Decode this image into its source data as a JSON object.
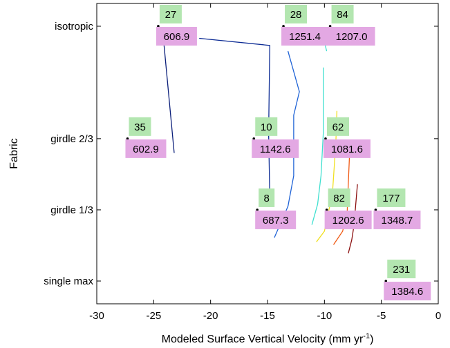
{
  "chart_data": {
    "type": "scatter",
    "xlabel": "Modeled Surface Vertical Velocity (mm yr",
    "xlabel_sup": "-1",
    "xlabel_close": ")",
    "ylabel": "Fabric",
    "xlim": [
      -30,
      0
    ],
    "xticks": [
      -30,
      -25,
      -20,
      -15,
      -10,
      -5,
      0
    ],
    "categories": [
      "isotropic",
      "girdle 2/3",
      "girdle 1/3",
      "single max"
    ],
    "category_positions": [
      0,
      1.58,
      2.58,
      3.58
    ],
    "ylim": [
      -0.32,
      3.9
    ],
    "grid": false,
    "points": [
      {
        "x": -24.6,
        "y": 0,
        "count": "27",
        "value": "606.9"
      },
      {
        "x": -13.6,
        "y": 0,
        "count": "28",
        "value": "1251.4"
      },
      {
        "x": -9.5,
        "y": 0,
        "count": "84",
        "value": "1207.0"
      },
      {
        "x": -27.3,
        "y": 1.58,
        "count": "35",
        "value": "602.9"
      },
      {
        "x": -16.2,
        "y": 1.58,
        "count": "10",
        "value": "1142.6"
      },
      {
        "x": -9.9,
        "y": 1.58,
        "count": "62",
        "value": "1081.6"
      },
      {
        "x": -15.9,
        "y": 2.58,
        "count": "8",
        "value": "687.3"
      },
      {
        "x": -9.8,
        "y": 2.58,
        "count": "82",
        "value": "1202.6"
      },
      {
        "x": -5.5,
        "y": 2.58,
        "count": "177",
        "value": "1348.7"
      },
      {
        "x": -4.6,
        "y": 3.58,
        "count": "231",
        "value": "1384.6"
      }
    ],
    "series": [
      {
        "color": "#0b1f7a",
        "x": [
          -24.2,
          -23.2
        ],
        "y": [
          0.08,
          1.78
        ]
      },
      {
        "color": "#0c2b94",
        "x": [
          -21.0,
          -14.8,
          -14.9,
          -14.8
        ],
        "y": [
          0.17,
          0.27,
          1.5,
          2.4
        ]
      },
      {
        "color": "#1f63d6",
        "x": [
          -13.2,
          -12.2,
          -12.7,
          -12.7,
          -13.2,
          -14.4
        ],
        "y": [
          0.35,
          0.92,
          1.25,
          2.1,
          2.53,
          2.97
        ]
      },
      {
        "color": "#40e0d0",
        "x": [
          -10.0,
          -9.8
        ],
        "y": [
          0.22,
          0.35
        ]
      },
      {
        "color": "#40e0d0",
        "x": [
          -10.1,
          -10.1,
          -10.3,
          -10.6,
          -11.1
        ],
        "y": [
          0.58,
          1.5,
          2.1,
          2.5,
          2.79
        ]
      },
      {
        "color": "#f0e020",
        "x": [
          -8.9,
          -9.0,
          -9.3,
          -10.0,
          -10.7
        ],
        "y": [
          1.19,
          1.65,
          2.35,
          2.88,
          3.03
        ]
      },
      {
        "color": "#f05a14",
        "x": [
          -7.8,
          -7.9,
          -8.0,
          -8.4,
          -9.2
        ],
        "y": [
          1.82,
          2.2,
          2.6,
          2.88,
          3.07
        ]
      },
      {
        "color": "#8b0f0f",
        "x": [
          -7.1,
          -7.3,
          -7.4,
          -7.6,
          -7.9
        ],
        "y": [
          2.22,
          2.6,
          2.8,
          3.0,
          3.19
        ]
      }
    ],
    "colors": {
      "count_box": "#b3e6b0",
      "value_box": "#e3a8e3",
      "marker": "#000000"
    }
  }
}
